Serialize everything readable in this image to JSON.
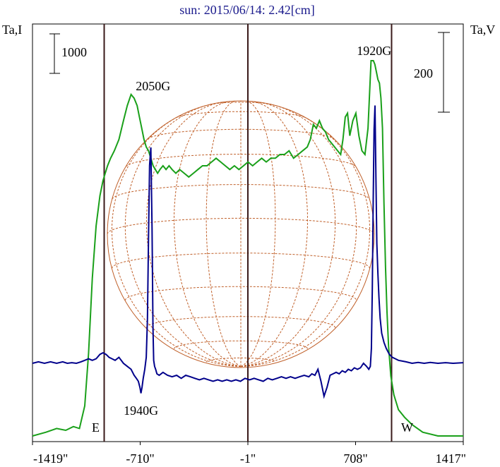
{
  "chart_data": {
    "type": "line",
    "title": "sun: 2015/06/14: 2.42[cm]",
    "title_color": "#1a1a8c",
    "left_axis_label": "Ta,I",
    "right_axis_label": "Ta,V",
    "x_ticks": [
      "-1419\"",
      "-710\"",
      "-1\"",
      "708\"",
      "1417\""
    ],
    "x_tick_values": [
      -1419,
      -710,
      -1,
      708,
      1417
    ],
    "xlim": [
      -1419,
      1417
    ],
    "scale_bar_left": "1000",
    "scale_bar_right": "200",
    "limb_labels": {
      "east": "E",
      "west": "W"
    },
    "limb_positions": [
      -947,
      945
    ],
    "annotations": [
      {
        "text": "2050G",
        "x": -625
      },
      {
        "text": "1940G",
        "x": -705
      },
      {
        "text": "1920G",
        "x": 830
      }
    ],
    "colors": {
      "stokes_i": "#1aa01a",
      "stokes_v": "#00008b",
      "grid": "#c0602a",
      "limb": "#3a1a1a"
    },
    "grid": true,
    "series": [
      {
        "id": "stokes-i",
        "x": [
          -1419,
          -1330,
          -1260,
          -1200,
          -1150,
          -1110,
          -1075,
          -1050,
          -1025,
          -1000,
          -975,
          -955,
          -940,
          -925,
          -905,
          -880,
          -850,
          -820,
          -795,
          -770,
          -750,
          -730,
          -715,
          -700,
          -685,
          -670,
          -655,
          -640,
          -625,
          -610,
          -595,
          -580,
          -560,
          -540,
          -520,
          -500,
          -475,
          -450,
          -420,
          -390,
          -360,
          -330,
          -300,
          -270,
          -240,
          -210,
          -180,
          -150,
          -120,
          -90,
          -60,
          -30,
          0,
          30,
          60,
          90,
          120,
          150,
          180,
          210,
          240,
          270,
          300,
          330,
          360,
          390,
          410,
          430,
          450,
          470,
          490,
          510,
          530,
          550,
          570,
          590,
          610,
          625,
          640,
          655,
          670,
          690,
          710,
          730,
          750,
          770,
          790,
          810,
          825,
          835,
          845,
          855,
          865,
          875,
          885,
          895,
          905,
          915,
          925,
          940,
          960,
          990,
          1030,
          1080,
          1150,
          1250,
          1350,
          1417
        ],
        "y": [
          0.0,
          0.01,
          0.02,
          0.015,
          0.025,
          0.02,
          0.08,
          0.22,
          0.42,
          0.56,
          0.64,
          0.68,
          0.7,
          0.72,
          0.74,
          0.76,
          0.79,
          0.84,
          0.88,
          0.91,
          0.9,
          0.88,
          0.85,
          0.82,
          0.79,
          0.77,
          0.76,
          0.74,
          0.72,
          0.71,
          0.7,
          0.71,
          0.72,
          0.71,
          0.72,
          0.71,
          0.7,
          0.71,
          0.7,
          0.69,
          0.7,
          0.71,
          0.72,
          0.72,
          0.73,
          0.74,
          0.73,
          0.72,
          0.71,
          0.72,
          0.71,
          0.72,
          0.73,
          0.72,
          0.73,
          0.74,
          0.73,
          0.74,
          0.74,
          0.75,
          0.75,
          0.76,
          0.74,
          0.75,
          0.76,
          0.77,
          0.79,
          0.83,
          0.82,
          0.84,
          0.82,
          0.81,
          0.79,
          0.78,
          0.77,
          0.76,
          0.75,
          0.79,
          0.85,
          0.86,
          0.8,
          0.84,
          0.86,
          0.8,
          0.76,
          0.75,
          0.82,
          1.0,
          1.0,
          0.99,
          0.97,
          0.95,
          0.94,
          0.9,
          0.82,
          0.62,
          0.45,
          0.33,
          0.24,
          0.16,
          0.11,
          0.07,
          0.05,
          0.03,
          0.01,
          0.0,
          0.0,
          0.0
        ]
      },
      {
        "id": "stokes-v",
        "x": [
          -1419,
          -1380,
          -1340,
          -1300,
          -1260,
          -1220,
          -1190,
          -1160,
          -1130,
          -1100,
          -1075,
          -1050,
          -1025,
          -1000,
          -975,
          -955,
          -935,
          -915,
          -895,
          -875,
          -850,
          -820,
          -795,
          -770,
          -750,
          -735,
          -722,
          -712,
          -705,
          -698,
          -690,
          -680,
          -670,
          -662,
          -655,
          -648,
          -640,
          -632,
          -626,
          -621,
          -615,
          -608,
          -600,
          -585,
          -560,
          -530,
          -500,
          -470,
          -440,
          -410,
          -380,
          -350,
          -320,
          -290,
          -260,
          -230,
          -200,
          -170,
          -140,
          -110,
          -80,
          -50,
          -20,
          10,
          40,
          70,
          100,
          130,
          160,
          190,
          220,
          250,
          280,
          310,
          340,
          370,
          400,
          420,
          440,
          460,
          480,
          500,
          520,
          540,
          560,
          580,
          600,
          620,
          640,
          660,
          680,
          700,
          720,
          740,
          760,
          780,
          795,
          805,
          812,
          818,
          824,
          830,
          836,
          842,
          848,
          855,
          862,
          870,
          880,
          895,
          910,
          930,
          950,
          970,
          990,
          1010,
          1040,
          1080,
          1120,
          1160,
          1200,
          1250,
          1300,
          1350,
          1417
        ],
        "y": [
          0.0,
          0.005,
          0.0,
          0.005,
          0.0,
          0.005,
          0.0,
          0.002,
          0.0,
          0.005,
          0.01,
          0.015,
          0.01,
          0.015,
          0.03,
          0.035,
          0.03,
          0.02,
          0.015,
          0.01,
          0.02,
          0.0,
          -0.01,
          -0.02,
          -0.04,
          -0.05,
          -0.06,
          -0.08,
          -0.1,
          -0.08,
          -0.05,
          -0.02,
          0.02,
          0.15,
          0.42,
          0.66,
          0.72,
          0.45,
          0.12,
          0.01,
          -0.01,
          -0.02,
          -0.035,
          -0.04,
          -0.03,
          -0.04,
          -0.045,
          -0.04,
          -0.05,
          -0.04,
          -0.045,
          -0.05,
          -0.055,
          -0.05,
          -0.055,
          -0.06,
          -0.055,
          -0.06,
          -0.055,
          -0.06,
          -0.055,
          -0.06,
          -0.05,
          -0.055,
          -0.05,
          -0.055,
          -0.06,
          -0.05,
          -0.055,
          -0.05,
          -0.045,
          -0.05,
          -0.045,
          -0.05,
          -0.045,
          -0.04,
          -0.045,
          -0.035,
          -0.04,
          -0.02,
          -0.06,
          -0.11,
          -0.08,
          -0.04,
          -0.035,
          -0.03,
          -0.035,
          -0.025,
          -0.03,
          -0.02,
          -0.025,
          -0.015,
          -0.02,
          -0.015,
          0.0,
          -0.01,
          -0.02,
          -0.01,
          0.05,
          0.25,
          0.55,
          0.78,
          0.86,
          0.62,
          0.4,
          0.3,
          0.22,
          0.15,
          0.1,
          0.07,
          0.05,
          0.03,
          0.02,
          0.015,
          0.01,
          0.008,
          0.005,
          0.0,
          0.003,
          0.0,
          0.003,
          0.0,
          0.002,
          0.0,
          0.002
        ]
      }
    ]
  }
}
